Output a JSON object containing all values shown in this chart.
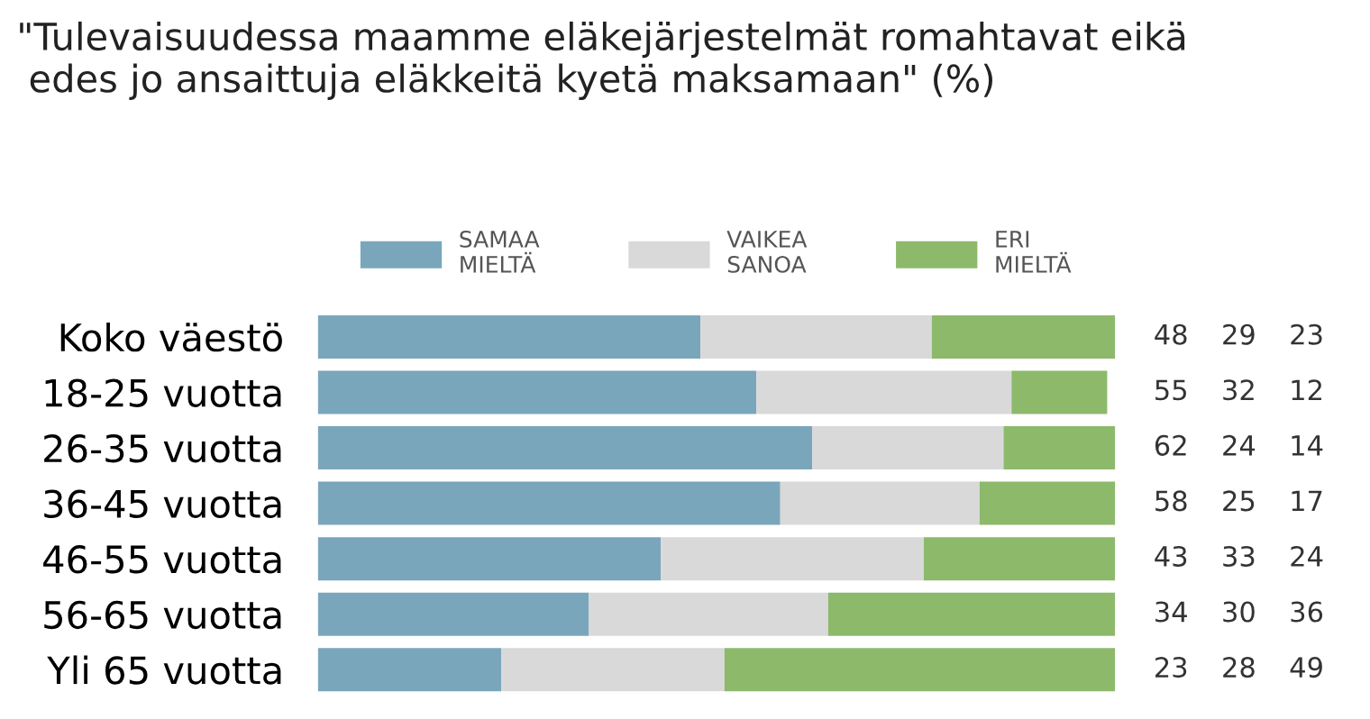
{
  "chart_data": {
    "type": "bar",
    "orientation": "horizontal",
    "stacked": true,
    "title": "\"Tulevaisuudessa maamme eläkejärjestelmät romahtavat eikä\n edes jo ansaittuja eläkkeitä kyetä maksamaan\" (%)",
    "categories": [
      "Koko väestö",
      "18-25 vuotta",
      "26-35 vuotta",
      "36-45 vuotta",
      "46-55 vuotta",
      "56-65 vuotta",
      "Yli 65 vuotta"
    ],
    "series": [
      {
        "name": "SAMAA\nMIELTÄ",
        "color": "#7aa6bb",
        "values": [
          48,
          55,
          62,
          58,
          43,
          34,
          23
        ]
      },
      {
        "name": "VAIKEA\nSANOA",
        "color": "#d9d9d9",
        "values": [
          29,
          32,
          24,
          25,
          33,
          30,
          28
        ]
      },
      {
        "name": "ERI\nMIELTÄ",
        "color": "#8db96b",
        "values": [
          23,
          12,
          14,
          17,
          24,
          36,
          49
        ]
      }
    ],
    "xlim": [
      0,
      100
    ],
    "tick_labels": "y",
    "data_labels": true,
    "legend": "top",
    "grid": false
  }
}
